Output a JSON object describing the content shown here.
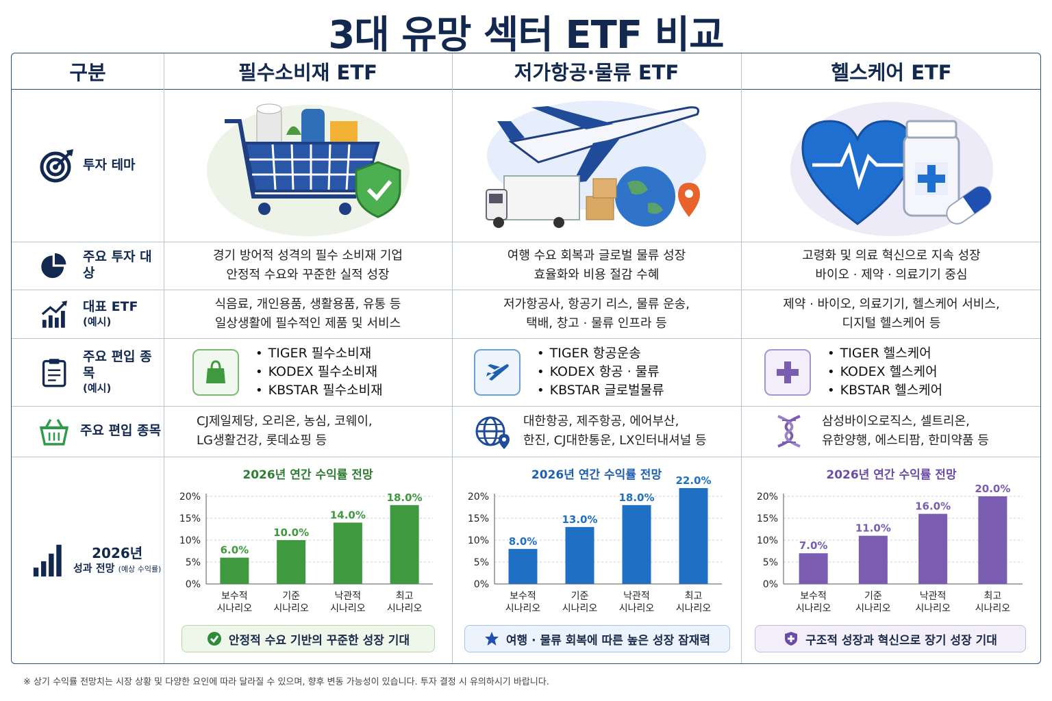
{
  "title": "3대 유망 섹터 ETF 비교",
  "header": {
    "category": "구분",
    "columns": [
      "필수소비재 ETF",
      "저가항공·물류 ETF",
      "헬스케어 ETF"
    ]
  },
  "rows": {
    "theme": {
      "label": "투자 테마",
      "icon": "target-icon"
    },
    "targets": {
      "label": "주요 투자 대상",
      "icon": "pie-chart-icon",
      "values": [
        [
          "경기 방어적 성격의 필수 소비재 기업",
          "안정적 수요와 꾸준한 실적 성장"
        ],
        [
          "여행 수요 회복과 글로벌 물류 성장",
          "효율화와 비용 절감 수혜"
        ],
        [
          "고령화 및 의료 혁신으로 지속 성장",
          "바이오 · 제약 · 의료기기 중심"
        ]
      ]
    },
    "representative": {
      "label": "대표 ETF",
      "sublabel": "(예시)",
      "icon": "growth-chart-icon",
      "values": [
        [
          "식음료, 개인용품, 생활용품, 유통 등",
          "일상생활에 필수적인 제품 및 서비스"
        ],
        [
          "저가항공사, 항공기 리스, 물류 운송,",
          "택배, 창고 · 물류 인프라 등"
        ],
        [
          "제약 · 바이오, 의료기기, 헬스케어 서비스,",
          "디지털 헬스케어 등"
        ]
      ]
    },
    "holdings_etf": {
      "label": "주요 편입 종목",
      "sublabel": "(예시)",
      "icon": "clipboard-icon",
      "values": [
        {
          "icon": "shopping-bag-icon",
          "items": [
            "TIGER 필수소비재",
            "KODEX 필수소비재",
            "KBSTAR 필수소비재"
          ]
        },
        {
          "icon": "airplane-icon",
          "items": [
            "TIGER 항공운송",
            "KODEX 항공 · 물류",
            "KBSTAR 글로벌물류"
          ]
        },
        {
          "icon": "medical-cross-icon",
          "items": [
            "TIGER 헬스케어",
            "KODEX 헬스케어",
            "KBSTAR 헬스케어"
          ]
        }
      ]
    },
    "holdings_stocks": {
      "label": "주요 편입 종목",
      "icon": "basket-icon",
      "values": [
        {
          "icon": "",
          "lines": [
            "CJ제일제당, 오리온, 농심, 코웨이,",
            "LG생활건강, 롯데쇼핑 등"
          ]
        },
        {
          "icon": "globe-pin-icon",
          "lines": [
            "대한항공, 제주항공, 에어부산,",
            "한진, CJ대한통운, LX인터내셔널 등"
          ]
        },
        {
          "icon": "dna-icon",
          "lines": [
            "삼성바이오로직스, 셀트리온,",
            "유한양행, 에스티팜, 한미약품 등"
          ]
        }
      ]
    },
    "outlook": {
      "label": "2026년",
      "sublabel": "성과 전망",
      "sublabel_small": "(예상 수익률)",
      "icon": "bar-chart-icon",
      "summaries": [
        {
          "text": "안정적 수요 기반의 꾸준한 성장 기대",
          "icon": "check-circle-icon"
        },
        {
          "text": "여행 · 물류 회복에 따른 높은 성장 잠재력",
          "icon": "star-icon"
        },
        {
          "text": "구조적 성장과 혁신으로 장기 성장 기대",
          "icon": "shield-plus-icon"
        }
      ]
    }
  },
  "colors": {
    "navy": "#12284f",
    "green": "#3f9a3f",
    "blue": "#1f6fc4",
    "purple": "#7a5cb0"
  },
  "chart_data": [
    {
      "type": "bar",
      "title": "2026년 연간 수익률 전망",
      "categories": [
        [
          "보수적",
          "시나리오"
        ],
        [
          "기준",
          "시나리오"
        ],
        [
          "낙관적",
          "시나리오"
        ],
        [
          "최고",
          "시나리오"
        ]
      ],
      "values": [
        6.0,
        10.0,
        14.0,
        18.0
      ],
      "data_labels": [
        "6.0%",
        "10.0%",
        "14.0%",
        "18.0%"
      ],
      "yticks": [
        "0%",
        "5%",
        "10%",
        "15%",
        "20%"
      ],
      "ylim": [
        0,
        20
      ],
      "grid": true,
      "color": "#3f9a3f"
    },
    {
      "type": "bar",
      "title": "2026년 연간 수익률 전망",
      "categories": [
        [
          "보수적",
          "시나리오"
        ],
        [
          "기준",
          "시나리오"
        ],
        [
          "낙관적",
          "시나리오"
        ],
        [
          "최고",
          "시나리오"
        ]
      ],
      "values": [
        8.0,
        13.0,
        18.0,
        22.0
      ],
      "data_labels": [
        "8.0%",
        "13.0%",
        "18.0%",
        "22.0%"
      ],
      "yticks": [
        "0%",
        "5%",
        "10%",
        "15%",
        "20%"
      ],
      "ylim": [
        0,
        20
      ],
      "grid": true,
      "color": "#1f6fc4"
    },
    {
      "type": "bar",
      "title": "2026년 연간 수익률 전망",
      "categories": [
        [
          "보수적",
          "시나리오"
        ],
        [
          "기준",
          "시나리오"
        ],
        [
          "낙관적",
          "시나리오"
        ],
        [
          "최고",
          "시나리오"
        ]
      ],
      "values": [
        7.0,
        11.0,
        16.0,
        20.0
      ],
      "data_labels": [
        "7.0%",
        "11.0%",
        "16.0%",
        "20.0%"
      ],
      "yticks": [
        "0%",
        "5%",
        "10%",
        "15%",
        "20%"
      ],
      "ylim": [
        0,
        20
      ],
      "grid": true,
      "color": "#7a5cb0"
    }
  ],
  "footnote": "※ 상기 수익률 전망치는 시장 상황 및 다양한 요인에 따라 달라질 수 있으며, 향후 변동 가능성이 있습니다. 투자 결정 시 유의하시기 바랍니다."
}
